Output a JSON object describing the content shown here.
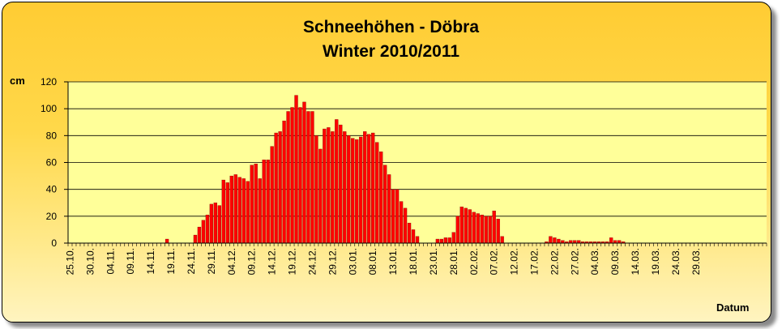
{
  "chart_data": {
    "type": "bar",
    "title": "Schneehöhen - Döbra",
    "subtitle": "Winter 2010/2011",
    "ylabel": "cm",
    "xlabel": "Datum",
    "ylim": [
      0,
      120
    ],
    "yticks": [
      0,
      20,
      40,
      60,
      80,
      100,
      120
    ],
    "grid": true,
    "xtick_labels": [
      "25.10.",
      "30.10.",
      "04.11.",
      "09.11.",
      "14.11.",
      "19.11.",
      "24.11.",
      "29.11.",
      "04.12.",
      "09.12.",
      "14.12.",
      "19.12.",
      "24.12.",
      "29.12.",
      "03.01.",
      "08.01.",
      "13.01.",
      "18.01.",
      "23.01.",
      "28.01.",
      "02.02.",
      "07.02.",
      "12.02.",
      "17.02.",
      "22.02.",
      "27.02.",
      "04.03.",
      "09.03.",
      "14.03.",
      "19.03.",
      "24.03.",
      "29.03."
    ],
    "start_date": "25.10.2010",
    "bar_color": "#ff0000",
    "values": [
      0,
      0,
      0,
      0,
      0,
      0,
      0,
      0,
      0,
      0,
      0,
      0,
      0,
      0,
      0,
      0,
      0,
      0,
      0,
      0,
      0,
      0,
      0,
      0,
      3,
      0,
      0,
      0,
      0,
      0,
      0,
      6,
      12,
      17,
      21,
      29,
      30,
      28,
      47,
      45,
      50,
      51,
      49,
      48,
      46,
      58,
      59,
      48,
      62,
      62,
      72,
      82,
      83,
      91,
      98,
      101,
      110,
      101,
      105,
      98,
      98,
      80,
      70,
      85,
      86,
      83,
      92,
      88,
      83,
      80,
      78,
      77,
      79,
      83,
      81,
      82,
      75,
      68,
      58,
      51,
      40,
      40,
      31,
      26,
      15,
      10,
      5,
      0,
      0,
      0,
      0,
      3,
      3,
      4,
      4,
      8,
      20,
      27,
      26,
      25,
      23,
      22,
      21,
      20,
      20,
      24,
      18,
      5,
      0,
      0,
      0,
      0,
      0,
      0,
      0,
      0,
      0,
      0,
      1,
      5,
      4,
      3,
      2,
      1,
      2,
      2,
      2,
      1,
      1,
      1,
      1,
      1,
      1,
      1,
      4,
      2,
      2,
      1,
      0,
      0,
      0,
      0,
      0,
      0,
      0,
      0,
      0,
      0,
      0,
      0,
      0,
      0,
      0,
      0,
      0,
      0,
      0,
      0,
      0,
      0,
      0,
      0,
      0,
      0,
      0,
      0,
      0,
      0,
      0,
      0,
      0,
      0,
      0
    ]
  }
}
